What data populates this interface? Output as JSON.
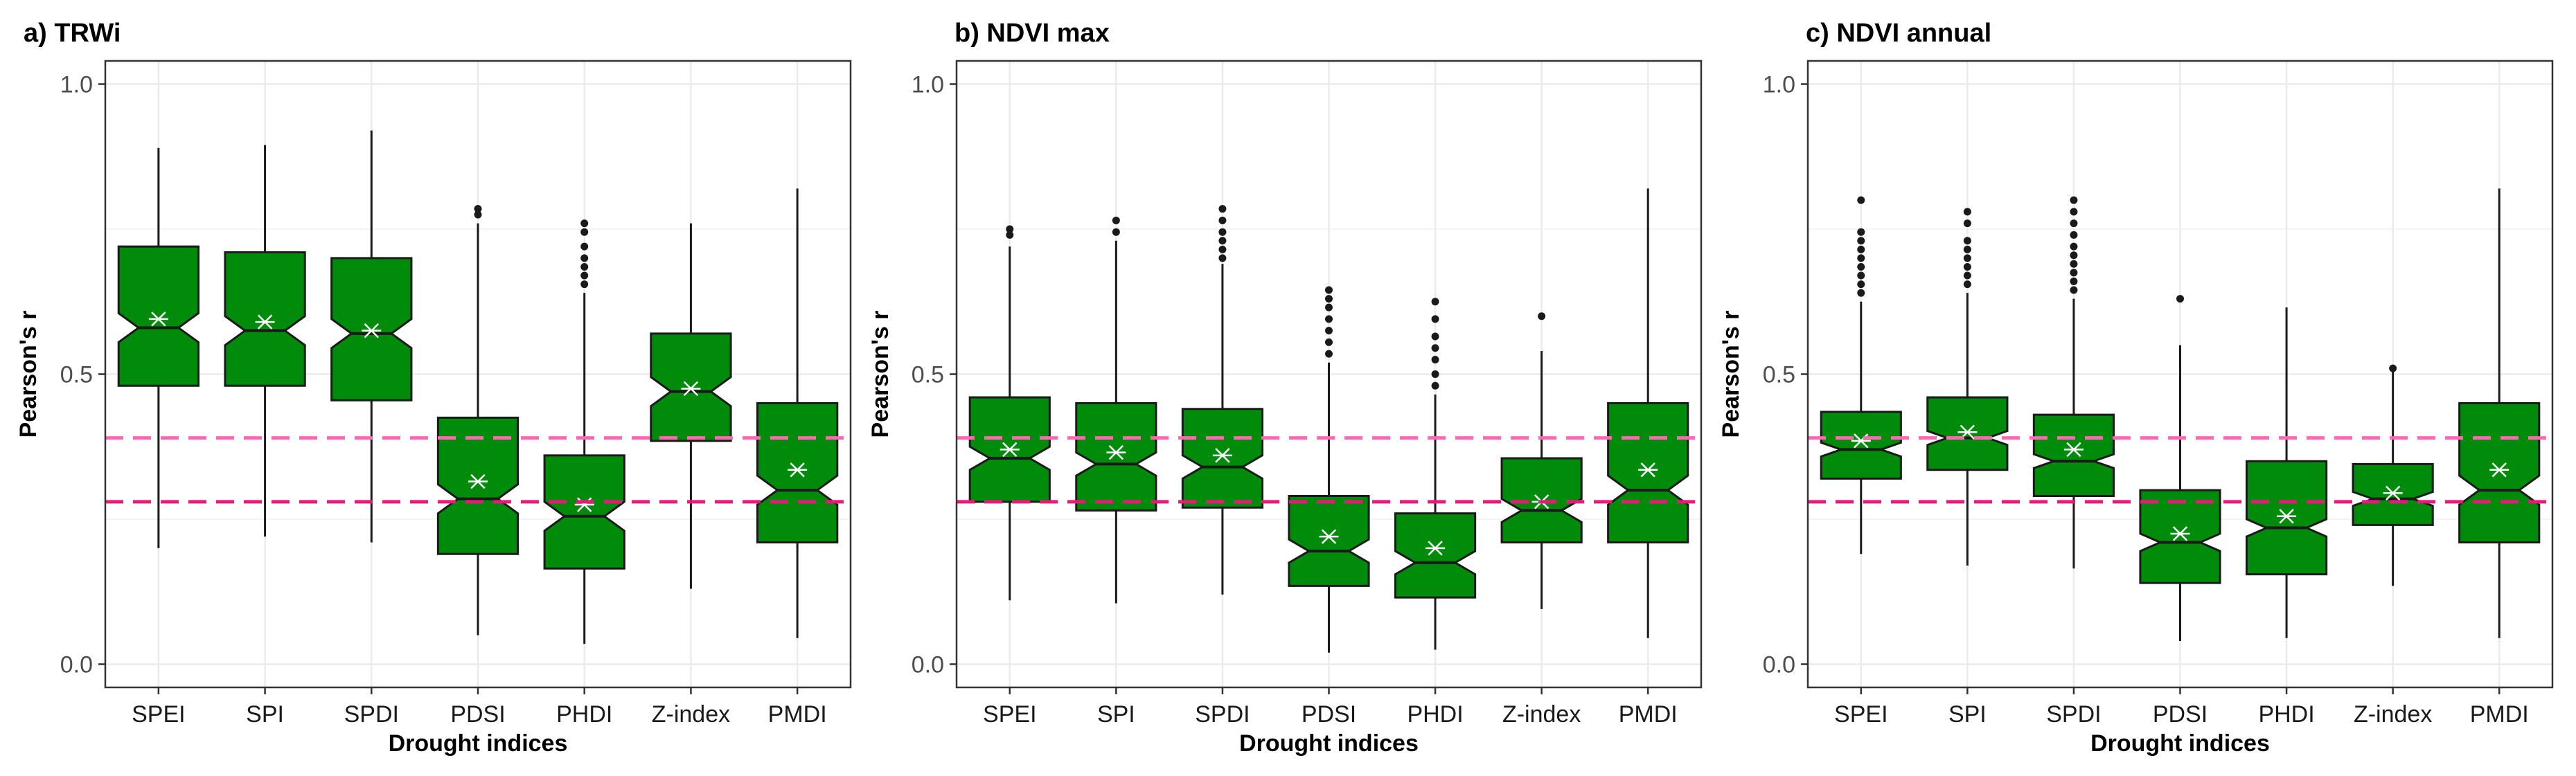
{
  "chart_data": [
    {
      "type": "boxplot",
      "title": "a) TRWi",
      "xlabel": "Drought indices",
      "ylabel": "Pearson's r",
      "ylim": [
        -0.04,
        1.04
      ],
      "yticks": [
        "0.0",
        "0.5",
        "1.0"
      ],
      "ytick_values": [
        0.0,
        0.5,
        1.0
      ],
      "grid": true,
      "reference_lines": [
        {
          "value": 0.39,
          "color": "#ff69b4",
          "style": "dashed"
        },
        {
          "value": 0.28,
          "color": "#e8197a",
          "style": "dashed"
        }
      ],
      "categories": [
        "SPEI",
        "SPI",
        "SPDI",
        "PDSI",
        "PHDI",
        "Z-index",
        "PMDI"
      ],
      "boxes": [
        {
          "min": 0.2,
          "q1": 0.48,
          "median": 0.58,
          "q3": 0.72,
          "max": 0.89,
          "mean": 0.595,
          "notch": 0.025,
          "outliers": []
        },
        {
          "min": 0.22,
          "q1": 0.48,
          "median": 0.575,
          "q3": 0.71,
          "max": 0.895,
          "mean": 0.59,
          "notch": 0.025,
          "outliers": []
        },
        {
          "min": 0.21,
          "q1": 0.455,
          "median": 0.57,
          "q3": 0.7,
          "max": 0.92,
          "mean": 0.575,
          "notch": 0.025,
          "outliers": []
        },
        {
          "min": 0.05,
          "q1": 0.19,
          "median": 0.285,
          "q3": 0.425,
          "max": 0.76,
          "mean": 0.315,
          "notch": 0.025,
          "outliers": [
            0.775,
            0.785
          ]
        },
        {
          "min": 0.035,
          "q1": 0.165,
          "median": 0.255,
          "q3": 0.36,
          "max": 0.64,
          "mean": 0.275,
          "notch": 0.025,
          "outliers": [
            0.655,
            0.67,
            0.685,
            0.7,
            0.72,
            0.745,
            0.76
          ]
        },
        {
          "min": 0.13,
          "q1": 0.385,
          "median": 0.47,
          "q3": 0.57,
          "max": 0.76,
          "mean": 0.475,
          "notch": 0.025,
          "outliers": []
        },
        {
          "min": 0.045,
          "q1": 0.21,
          "median": 0.3,
          "q3": 0.45,
          "max": 0.82,
          "mean": 0.335,
          "notch": 0.025,
          "outliers": []
        }
      ]
    },
    {
      "type": "boxplot",
      "title": "b) NDVI max",
      "xlabel": "Drought indices",
      "ylabel": "Pearson's r",
      "ylim": [
        -0.04,
        1.04
      ],
      "yticks": [
        "0.0",
        "0.5",
        "1.0"
      ],
      "ytick_values": [
        0.0,
        0.5,
        1.0
      ],
      "grid": true,
      "reference_lines": [
        {
          "value": 0.39,
          "color": "#ff69b4",
          "style": "dashed"
        },
        {
          "value": 0.28,
          "color": "#e8197a",
          "style": "dashed"
        }
      ],
      "categories": [
        "SPEI",
        "SPI",
        "SPDI",
        "PDSI",
        "PHDI",
        "Z-index",
        "PMDI"
      ],
      "boxes": [
        {
          "min": 0.11,
          "q1": 0.28,
          "median": 0.355,
          "q3": 0.46,
          "max": 0.72,
          "mean": 0.37,
          "notch": 0.02,
          "outliers": [
            0.74,
            0.75
          ]
        },
        {
          "min": 0.105,
          "q1": 0.265,
          "median": 0.345,
          "q3": 0.45,
          "max": 0.73,
          "mean": 0.365,
          "notch": 0.02,
          "outliers": [
            0.745,
            0.765
          ]
        },
        {
          "min": 0.12,
          "q1": 0.27,
          "median": 0.34,
          "q3": 0.44,
          "max": 0.69,
          "mean": 0.36,
          "notch": 0.02,
          "outliers": [
            0.7,
            0.715,
            0.73,
            0.745,
            0.765,
            0.785
          ]
        },
        {
          "min": 0.02,
          "q1": 0.135,
          "median": 0.195,
          "q3": 0.29,
          "max": 0.52,
          "mean": 0.22,
          "notch": 0.02,
          "outliers": [
            0.535,
            0.555,
            0.575,
            0.595,
            0.615,
            0.63,
            0.645
          ]
        },
        {
          "min": 0.025,
          "q1": 0.115,
          "median": 0.175,
          "q3": 0.26,
          "max": 0.465,
          "mean": 0.2,
          "notch": 0.02,
          "outliers": [
            0.48,
            0.5,
            0.525,
            0.545,
            0.565,
            0.595,
            0.625
          ]
        },
        {
          "min": 0.095,
          "q1": 0.21,
          "median": 0.265,
          "q3": 0.355,
          "max": 0.54,
          "mean": 0.28,
          "notch": 0.02,
          "outliers": [
            0.6
          ]
        },
        {
          "min": 0.045,
          "q1": 0.21,
          "median": 0.3,
          "q3": 0.45,
          "max": 0.82,
          "mean": 0.335,
          "notch": 0.025,
          "outliers": []
        }
      ]
    },
    {
      "type": "boxplot",
      "title": "c) NDVI annual",
      "xlabel": "Drought indices",
      "ylabel": "Pearson's r",
      "ylim": [
        -0.04,
        1.04
      ],
      "yticks": [
        "0.0",
        "0.5",
        "1.0"
      ],
      "ytick_values": [
        0.0,
        0.5,
        1.0
      ],
      "grid": true,
      "reference_lines": [
        {
          "value": 0.39,
          "color": "#ff69b4",
          "style": "dashed"
        },
        {
          "value": 0.28,
          "color": "#e8197a",
          "style": "dashed"
        }
      ],
      "categories": [
        "SPEI",
        "SPI",
        "SPDI",
        "PDSI",
        "PHDI",
        "Z-index",
        "PMDI"
      ],
      "boxes": [
        {
          "min": 0.19,
          "q1": 0.32,
          "median": 0.37,
          "q3": 0.435,
          "max": 0.625,
          "mean": 0.385,
          "notch": 0.012,
          "outliers": [
            0.64,
            0.655,
            0.67,
            0.685,
            0.7,
            0.715,
            0.73,
            0.745,
            0.8
          ]
        },
        {
          "min": 0.17,
          "q1": 0.335,
          "median": 0.39,
          "q3": 0.46,
          "max": 0.64,
          "mean": 0.4,
          "notch": 0.012,
          "outliers": [
            0.655,
            0.67,
            0.685,
            0.7,
            0.715,
            0.73,
            0.76,
            0.78
          ]
        },
        {
          "min": 0.165,
          "q1": 0.29,
          "median": 0.35,
          "q3": 0.43,
          "max": 0.63,
          "mean": 0.37,
          "notch": 0.012,
          "outliers": [
            0.645,
            0.66,
            0.675,
            0.69,
            0.705,
            0.72,
            0.74,
            0.76,
            0.78,
            0.8
          ]
        },
        {
          "min": 0.04,
          "q1": 0.14,
          "median": 0.21,
          "q3": 0.3,
          "max": 0.55,
          "mean": 0.225,
          "notch": 0.015,
          "outliers": [
            0.63
          ]
        },
        {
          "min": 0.045,
          "q1": 0.155,
          "median": 0.235,
          "q3": 0.35,
          "max": 0.615,
          "mean": 0.255,
          "notch": 0.015,
          "outliers": []
        },
        {
          "min": 0.135,
          "q1": 0.24,
          "median": 0.285,
          "q3": 0.345,
          "max": 0.51,
          "mean": 0.295,
          "notch": 0.012,
          "outliers": [
            0.51
          ]
        },
        {
          "min": 0.045,
          "q1": 0.21,
          "median": 0.3,
          "q3": 0.45,
          "max": 0.82,
          "mean": 0.335,
          "notch": 0.025,
          "outliers": []
        }
      ]
    }
  ],
  "colors": {
    "box_fill": "#008b0b",
    "box_stroke": "#1a1a1a",
    "whisker": "#1a1a1a",
    "mean_marker": "#ffffff",
    "grid": "#ebebeb",
    "panel_border": "#333333",
    "outlier": "#1a1a1a"
  }
}
